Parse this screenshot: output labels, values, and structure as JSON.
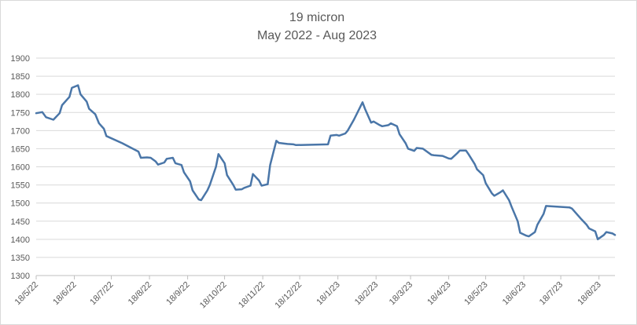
{
  "chart_data": {
    "type": "line",
    "title": "19 micron",
    "subtitle": "May 2022 - Aug 2023",
    "xlabel": "",
    "ylabel": "",
    "ylim": [
      1300,
      1900
    ],
    "yticks": [
      1300,
      1350,
      1400,
      1450,
      1500,
      1550,
      1600,
      1650,
      1700,
      1750,
      1800,
      1850,
      1900
    ],
    "xlim": [
      "2022-05-18",
      "2023-08-31"
    ],
    "xtick_labels": [
      "18/5/22",
      "18/6/22",
      "18/7/22",
      "18/8/22",
      "18/9/22",
      "18/10/22",
      "18/11/22",
      "18/12/22",
      "18/1/23",
      "18/2/23",
      "18/3/23",
      "18/4/23",
      "18/5/23",
      "18/6/23",
      "18/7/23",
      "18/8/23"
    ],
    "xtick_dates": [
      "2022-05-18",
      "2022-06-18",
      "2022-07-18",
      "2022-08-18",
      "2022-09-18",
      "2022-10-18",
      "2022-11-18",
      "2022-12-18",
      "2023-01-18",
      "2023-02-18",
      "2023-03-18",
      "2023-04-18",
      "2023-05-18",
      "2023-06-18",
      "2023-07-18",
      "2023-08-18"
    ],
    "grid": true,
    "legend": "none",
    "line_color": "#4a76a8",
    "series": [
      {
        "x": [
          "2022-05-18",
          "2022-05-23",
          "2022-05-26",
          "2022-06-01",
          "2022-06-06",
          "2022-06-08",
          "2022-06-14",
          "2022-06-16",
          "2022-06-21",
          "2022-06-23",
          "2022-06-28",
          "2022-06-30",
          "2022-07-05",
          "2022-07-08",
          "2022-07-12",
          "2022-07-14",
          "2022-07-27",
          "2022-08-09",
          "2022-08-11",
          "2022-08-16",
          "2022-08-19",
          "2022-08-23",
          "2022-08-25",
          "2022-08-30",
          "2022-09-01",
          "2022-09-06",
          "2022-09-08",
          "2022-09-13",
          "2022-09-15",
          "2022-09-20",
          "2022-09-22",
          "2022-09-27",
          "2022-09-29",
          "2022-10-04",
          "2022-10-06",
          "2022-10-11",
          "2022-10-13",
          "2022-10-18",
          "2022-10-20",
          "2022-10-25",
          "2022-10-27",
          "2022-11-01",
          "2022-11-03",
          "2022-11-08",
          "2022-11-10",
          "2022-11-15",
          "2022-11-17",
          "2022-11-22",
          "2022-11-24",
          "2022-11-29",
          "2022-12-01",
          "2022-12-06",
          "2022-12-08",
          "2022-12-13",
          "2022-12-15",
          "2023-01-10",
          "2023-01-12",
          "2023-01-17",
          "2023-01-19",
          "2023-01-24",
          "2023-01-26",
          "2023-01-31",
          "2023-02-07",
          "2023-02-09",
          "2023-02-14",
          "2023-02-16",
          "2023-02-21",
          "2023-02-23",
          "2023-02-28",
          "2023-03-02",
          "2023-03-07",
          "2023-03-09",
          "2023-03-14",
          "2023-03-16",
          "2023-03-21",
          "2023-03-23",
          "2023-03-28",
          "2023-04-04",
          "2023-04-06",
          "2023-04-13",
          "2023-04-18",
          "2023-04-20",
          "2023-04-25",
          "2023-04-27",
          "2023-05-02",
          "2023-05-04",
          "2023-05-09",
          "2023-05-11",
          "2023-05-16",
          "2023-05-18",
          "2023-05-23",
          "2023-05-25",
          "2023-05-30",
          "2023-06-01",
          "2023-06-06",
          "2023-06-08",
          "2023-06-13",
          "2023-06-15",
          "2023-06-20",
          "2023-06-22",
          "2023-06-27",
          "2023-06-29",
          "2023-07-04",
          "2023-07-06",
          "2023-07-25",
          "2023-07-27",
          "2023-08-01",
          "2023-08-03",
          "2023-08-08",
          "2023-08-10",
          "2023-08-15",
          "2023-08-17",
          "2023-08-22",
          "2023-08-24",
          "2023-08-29",
          "2023-08-31"
        ],
        "y": [
          1748,
          1751,
          1737,
          1730,
          1748,
          1770,
          1793,
          1818,
          1825,
          1800,
          1780,
          1760,
          1745,
          1720,
          1705,
          1685,
          1665,
          1642,
          1625,
          1626,
          1625,
          1615,
          1606,
          1612,
          1622,
          1625,
          1610,
          1605,
          1585,
          1560,
          1535,
          1510,
          1508,
          1535,
          1550,
          1600,
          1635,
          1610,
          1577,
          1550,
          1537,
          1538,
          1542,
          1548,
          1580,
          1562,
          1548,
          1552,
          1605,
          1672,
          1666,
          1664,
          1663,
          1662,
          1660,
          1662,
          1686,
          1688,
          1686,
          1692,
          1700,
          1730,
          1778,
          1760,
          1722,
          1725,
          1715,
          1712,
          1715,
          1720,
          1712,
          1690,
          1665,
          1650,
          1644,
          1652,
          1650,
          1633,
          1632,
          1630,
          1623,
          1622,
          1638,
          1645,
          1645,
          1635,
          1608,
          1593,
          1577,
          1555,
          1527,
          1520,
          1530,
          1535,
          1508,
          1490,
          1450,
          1418,
          1410,
          1408,
          1420,
          1440,
          1470,
          1492,
          1488,
          1485,
          1466,
          1458,
          1440,
          1430,
          1422,
          1400,
          1412,
          1420,
          1416,
          1412
        ]
      }
    ]
  }
}
